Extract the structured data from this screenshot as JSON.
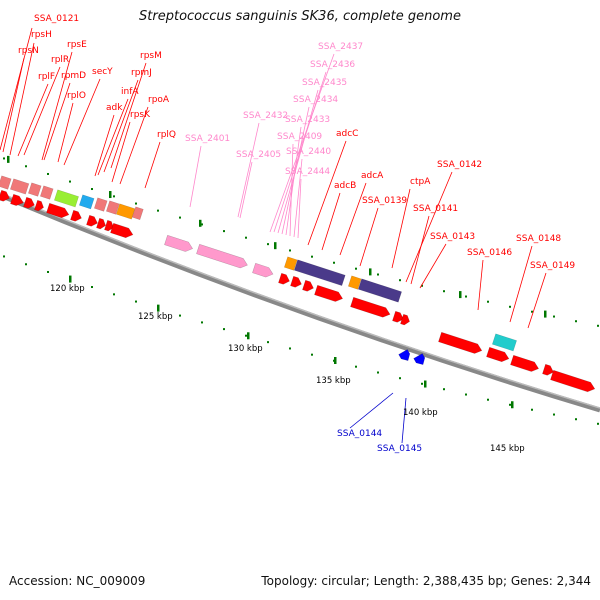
{
  "title": "Streptococcus sanguinis SK36, complete genome",
  "accession_text": "Accession: NC_009009",
  "topology_text": "Topology: circular; Length: 2,388,435 bp; Genes: 2,344",
  "colors": {
    "backbone": "#888888",
    "label_red": "#ff0000",
    "label_pink": "#ff88cc",
    "label_blue": "#0000cc",
    "tick": "#007700",
    "gene_red": "#ff0000",
    "gene_pink": "#ff99cc",
    "gene_salmon": "#f07878",
    "gene_purple": "#4a3a8a",
    "gene_orange": "#ff9900",
    "gene_green": "#99ee33",
    "gene_cyan": "#22cccc",
    "gene_blue": "#0000ff"
  },
  "scale_labels": [
    "120 kbp",
    "125 kbp",
    "130 kbp",
    "135 kbp",
    "140 kbp",
    "145 kbp"
  ],
  "gene_labels": {
    "red": [
      "SSA_0121",
      "rpsH",
      "rpsN",
      "rpsE",
      "rplR",
      "rplF",
      "rpmD",
      "secY",
      "rplO",
      "rpsM",
      "rpmJ",
      "infA",
      "adk",
      "rpsK",
      "rpoA",
      "rplQ",
      "adcC",
      "adcA",
      "adcB",
      "ctpA",
      "SSA_0139",
      "SSA_0142",
      "SSA_0141",
      "SSA_0143",
      "SSA_0146",
      "SSA_0148",
      "SSA_0149"
    ],
    "pink": [
      "SSA_2437",
      "SSA_2436",
      "SSA_2435",
      "SSA_2434",
      "SSA_2433",
      "SSA_2432",
      "SSA_2401",
      "SSA_2409",
      "SSA_2440",
      "SSA_2405",
      "SSA_2444"
    ],
    "blue": [
      "SSA_0144",
      "SSA_0145"
    ]
  }
}
